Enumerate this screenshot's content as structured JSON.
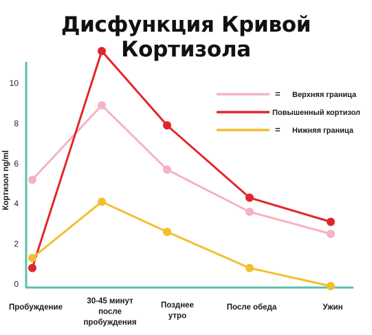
{
  "chart_data": {
    "type": "line",
    "title": "Дисфункция Кривой Кортизола",
    "ylabel": "Кортизол ng/ml",
    "xlabel": "",
    "categories": [
      [
        "Пробуждение"
      ],
      [
        "30-45 минут",
        "после",
        "пробуждения"
      ],
      [
        "Позднее",
        "утро"
      ],
      [
        "После обеда"
      ],
      [
        "Ужин"
      ]
    ],
    "yticks": [
      0,
      2,
      4,
      6,
      8,
      10
    ],
    "ylim": [
      0,
      11.6
    ],
    "grid": false,
    "legend_position": "top-right",
    "series": [
      {
        "name": "Верхняя граница",
        "color": "#f4b3c2",
        "legend_prefix": "=",
        "values": [
          5.2,
          8.9,
          5.7,
          3.6,
          2.5
        ]
      },
      {
        "name": "Повышенный кортизол",
        "color": "#e0262c",
        "legend_prefix": "",
        "values": [
          0.8,
          11.6,
          7.9,
          4.3,
          3.1
        ]
      },
      {
        "name": "Нижняя граница",
        "color": "#f2bf30",
        "legend_prefix": "=",
        "values": [
          1.3,
          4.1,
          2.6,
          0.8,
          -0.1
        ]
      }
    ],
    "axis_color": "#5bbcae"
  }
}
